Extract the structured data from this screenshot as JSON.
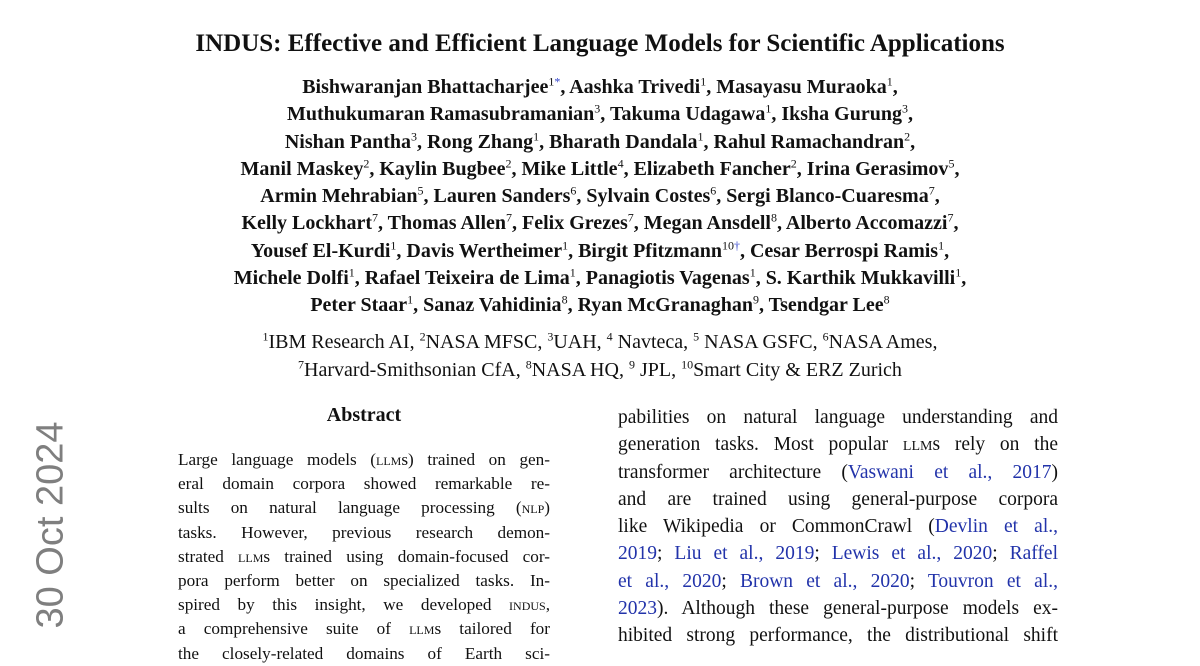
{
  "title": {
    "prefix": "INDUS",
    "rest": ": Effective and Efficient Language Models for Scientific Applications"
  },
  "authors": [
    [
      [
        "Bishwaranjan Bhattacharjee",
        "1",
        "*"
      ],
      [
        "Aashka Trivedi",
        "1"
      ],
      [
        "Masayasu Muraoka",
        "1"
      ]
    ],
    [
      [
        "Muthukumaran Ramasubramanian",
        "3"
      ],
      [
        "Takuma Udagawa",
        "1"
      ],
      [
        "Iksha Gurung",
        "3"
      ]
    ],
    [
      [
        "Nishan Pantha",
        "3"
      ],
      [
        "Rong Zhang",
        "1"
      ],
      [
        "Bharath Dandala",
        "1"
      ],
      [
        "Rahul Ramachandran",
        "2"
      ]
    ],
    [
      [
        "Manil Maskey",
        "2"
      ],
      [
        "Kaylin Bugbee",
        "2"
      ],
      [
        "Mike Little",
        "4"
      ],
      [
        "Elizabeth Fancher",
        "2"
      ],
      [
        "Irina Gerasimov",
        "5"
      ]
    ],
    [
      [
        "Armin Mehrabian",
        "5"
      ],
      [
        "Lauren Sanders",
        "6"
      ],
      [
        "Sylvain Costes",
        "6"
      ],
      [
        "Sergi Blanco-Cuaresma",
        "7"
      ]
    ],
    [
      [
        "Kelly Lockhart",
        "7"
      ],
      [
        "Thomas Allen",
        "7"
      ],
      [
        "Felix Grezes",
        "7"
      ],
      [
        "Megan Ansdell",
        "8"
      ],
      [
        "Alberto Accomazzi",
        "7"
      ]
    ],
    [
      [
        "Yousef El-Kurdi",
        "1"
      ],
      [
        "Davis Wertheimer",
        "1"
      ],
      [
        "Birgit Pfitzmann",
        "10",
        "†"
      ],
      [
        "Cesar Berrospi Ramis",
        "1"
      ]
    ],
    [
      [
        "Michele Dolfi",
        "1"
      ],
      [
        "Rafael Teixeira de Lima",
        "1"
      ],
      [
        "Panagiotis Vagenas",
        "1"
      ],
      [
        "S. Karthik Mukkavilli",
        "1"
      ]
    ],
    [
      [
        "Peter Staar",
        "1"
      ],
      [
        "Sanaz Vahidinia",
        "8"
      ],
      [
        "Ryan McGranaghan",
        "9"
      ],
      [
        "Tsendgar Lee",
        "8"
      ]
    ]
  ],
  "affiliations": [
    [
      [
        "1",
        "IBM Research AI"
      ],
      [
        "2",
        "NASA MFSC"
      ],
      [
        "3",
        "UAH"
      ],
      [
        "4",
        " Navteca"
      ],
      [
        "5",
        " NASA GSFC"
      ],
      [
        "6",
        "NASA Ames"
      ]
    ],
    [
      [
        "7",
        "Harvard-Smithsonian CfA"
      ],
      [
        "8",
        "NASA HQ"
      ],
      [
        "9",
        " JPL"
      ],
      [
        "10",
        "Smart City & ERZ Zurich"
      ]
    ]
  ],
  "arxiv_stamp": "30 Oct 2024",
  "abstract": {
    "heading": "Abstract",
    "lines": [
      "Large language models (<span class=\"sc\">llm</span>s) trained on gen-",
      "eral domain corpora showed remarkable re-",
      "sults on natural language processing (<span class=\"sc\">nlp</span>)",
      "tasks.  However, previous research demon-",
      "strated <span class=\"sc\">llm</span>s trained using domain-focused cor-",
      "pora perform better on specialized tasks.  In-",
      "spired by this insight, we developed <span class=\"sc\">indus</span>,",
      "a comprehensive suite of <span class=\"sc\">llm</span>s tailored for",
      "the closely-related domains of Earth sci-"
    ]
  },
  "right_column": {
    "lines": [
      "pabilities on natural language understanding and",
      "generation tasks. Most popular <span class=\"sc\">llm</span>s rely on the",
      "transformer architecture (<span class=\"link\">Vaswani et al., 2017</span>)",
      "and are trained using general-purpose corpora",
      "like Wikipedia or CommonCrawl (<span class=\"link\">Devlin et al.,</span>",
      "<span class=\"link\">2019</span>; <span class=\"link\">Liu et al., 2019</span>; <span class=\"link\">Lewis et al., 2020</span>; <span class=\"link\">Raffel</span>",
      "<span class=\"link\">et al., 2020</span>; <span class=\"link\">Brown et al., 2020</span>; <span class=\"link\">Touvron et al.,</span>",
      "<span class=\"link\">2023</span>). Although these general-purpose models ex-",
      "hibited strong performance, the distributional shift"
    ]
  },
  "colors": {
    "citation_link": "#2233aa",
    "stamp": "#7f7f7f"
  }
}
